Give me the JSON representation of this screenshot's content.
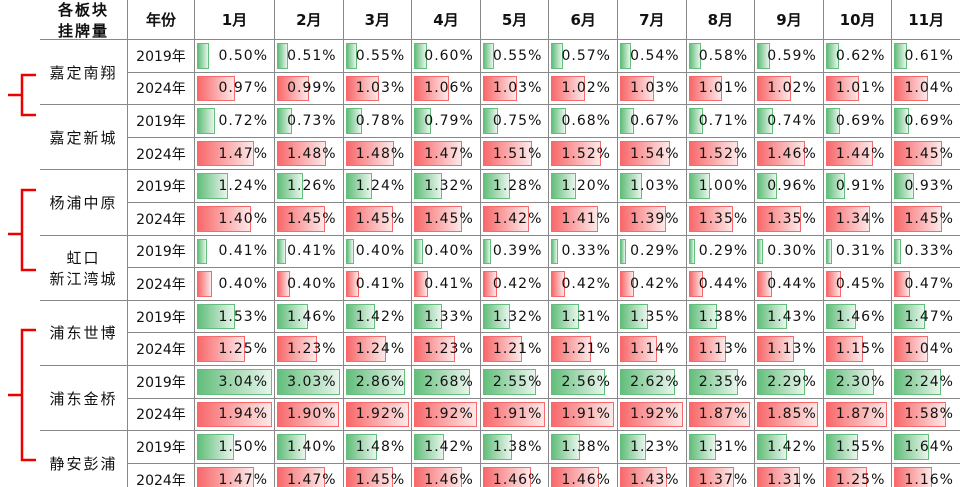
{
  "header": {
    "block": [
      "各板块",
      "挂牌量"
    ],
    "year": "年份",
    "months": [
      "1月",
      "2月",
      "3月",
      "4月",
      "5月",
      "6月",
      "7月",
      "8月",
      "9月",
      "10月",
      "11月"
    ]
  },
  "rows": [
    {
      "block": [
        "嘉定南翔"
      ],
      "years": [
        {
          "year": "2019年",
          "values": [
            0.5,
            0.51,
            0.55,
            0.6,
            0.55,
            0.57,
            0.54,
            0.58,
            0.59,
            0.62,
            0.61
          ],
          "labels": [
            "0.50%",
            "0.51%",
            "0.55%",
            "0.60%",
            "0.55%",
            "0.57%",
            "0.54%",
            "0.58%",
            "0.59%",
            "0.62%",
            "0.61%"
          ]
        },
        {
          "year": "2024年",
          "values": [
            0.97,
            0.99,
            1.03,
            1.06,
            1.03,
            1.02,
            1.03,
            1.01,
            1.02,
            1.01,
            1.04
          ],
          "labels": [
            "0.97%",
            "0.99%",
            "1.03%",
            "1.06%",
            "1.03%",
            "1.02%",
            "1.03%",
            "1.01%",
            "1.02%",
            "1.01%",
            "1.04%"
          ]
        }
      ]
    },
    {
      "block": [
        "嘉定新城"
      ],
      "years": [
        {
          "year": "2019年",
          "values": [
            0.72,
            0.73,
            0.78,
            0.79,
            0.75,
            0.68,
            0.67,
            0.71,
            0.74,
            0.69,
            0.69
          ],
          "labels": [
            "0.72%",
            "0.73%",
            "0.78%",
            "0.79%",
            "0.75%",
            "0.68%",
            "0.67%",
            "0.71%",
            "0.74%",
            "0.69%",
            "0.69%"
          ]
        },
        {
          "year": "2024年",
          "values": [
            1.47,
            1.48,
            1.48,
            1.47,
            1.51,
            1.52,
            1.54,
            1.52,
            1.46,
            1.44,
            1.45
          ],
          "labels": [
            "1.47%",
            "1.48%",
            "1.48%",
            "1.47%",
            "1.51%",
            "1.52%",
            "1.54%",
            "1.52%",
            "1.46%",
            "1.44%",
            "1.45%"
          ]
        }
      ]
    },
    {
      "block": [
        "杨浦中原"
      ],
      "years": [
        {
          "year": "2019年",
          "values": [
            1.24,
            1.26,
            1.24,
            1.32,
            1.28,
            1.2,
            1.03,
            1.0,
            0.96,
            0.91,
            0.93
          ],
          "labels": [
            "1.24%",
            "1.26%",
            "1.24%",
            "1.32%",
            "1.28%",
            "1.20%",
            "1.03%",
            "1.00%",
            "0.96%",
            "0.91%",
            "0.93%"
          ]
        },
        {
          "year": "2024年",
          "values": [
            1.4,
            1.45,
            1.45,
            1.45,
            1.42,
            1.41,
            1.39,
            1.35,
            1.35,
            1.34,
            1.45
          ],
          "labels": [
            "1.40%",
            "1.45%",
            "1.45%",
            "1.45%",
            "1.42%",
            "1.41%",
            "1.39%",
            "1.35%",
            "1.35%",
            "1.34%",
            "1.45%"
          ]
        }
      ]
    },
    {
      "block": [
        "虹口",
        "新江湾城"
      ],
      "years": [
        {
          "year": "2019年",
          "values": [
            0.41,
            0.41,
            0.4,
            0.4,
            0.39,
            0.33,
            0.29,
            0.29,
            0.3,
            0.31,
            0.33
          ],
          "labels": [
            "0.41%",
            "0.41%",
            "0.40%",
            "0.40%",
            "0.39%",
            "0.33%",
            "0.29%",
            "0.29%",
            "0.30%",
            "0.31%",
            "0.33%"
          ]
        },
        {
          "year": "2024年",
          "values": [
            0.4,
            0.4,
            0.41,
            0.41,
            0.42,
            0.42,
            0.42,
            0.44,
            0.44,
            0.45,
            0.47
          ],
          "labels": [
            "0.40%",
            "0.40%",
            "0.41%",
            "0.41%",
            "0.42%",
            "0.42%",
            "0.42%",
            "0.44%",
            "0.44%",
            "0.45%",
            "0.47%"
          ]
        }
      ]
    },
    {
      "block": [
        "浦东世博"
      ],
      "years": [
        {
          "year": "2019年",
          "values": [
            1.53,
            1.46,
            1.42,
            1.33,
            1.32,
            1.31,
            1.35,
            1.38,
            1.43,
            1.46,
            1.47
          ],
          "labels": [
            "1.53%",
            "1.46%",
            "1.42%",
            "1.33%",
            "1.32%",
            "1.31%",
            "1.35%",
            "1.38%",
            "1.43%",
            "1.46%",
            "1.47%"
          ]
        },
        {
          "year": "2024年",
          "values": [
            1.25,
            1.23,
            1.24,
            1.23,
            1.21,
            1.21,
            1.14,
            1.13,
            1.13,
            1.15,
            1.04
          ],
          "labels": [
            "1.25%",
            "1.23%",
            "1.24%",
            "1.23%",
            "1.21%",
            "1.21%",
            "1.14%",
            "1.13%",
            "1.13%",
            "1.15%",
            "1.04%"
          ]
        }
      ]
    },
    {
      "block": [
        "浦东金桥"
      ],
      "years": [
        {
          "year": "2019年",
          "values": [
            3.04,
            3.03,
            2.86,
            2.68,
            2.55,
            2.56,
            2.62,
            2.35,
            2.29,
            2.3,
            2.24
          ],
          "labels": [
            "3.04%",
            "3.03%",
            "2.86%",
            "2.68%",
            "2.55%",
            "2.56%",
            "2.62%",
            "2.35%",
            "2.29%",
            "2.30%",
            "2.24%"
          ]
        },
        {
          "year": "2024年",
          "values": [
            1.94,
            1.9,
            1.92,
            1.92,
            1.91,
            1.91,
            1.92,
            1.87,
            1.85,
            1.87,
            1.58
          ],
          "labels": [
            "1.94%",
            "1.90%",
            "1.92%",
            "1.92%",
            "1.91%",
            "1.91%",
            "1.92%",
            "1.87%",
            "1.85%",
            "1.87%",
            "1.58%"
          ]
        }
      ]
    },
    {
      "block": [
        "静安彭浦"
      ],
      "years": [
        {
          "year": "2019年",
          "values": [
            1.5,
            1.4,
            1.48,
            1.42,
            1.38,
            1.38,
            1.23,
            1.31,
            1.42,
            1.55,
            1.64
          ],
          "labels": [
            "1.50%",
            "1.40%",
            "1.48%",
            "1.42%",
            "1.38%",
            "1.38%",
            "1.23%",
            "1.31%",
            "1.42%",
            "1.55%",
            "1.64%"
          ]
        },
        {
          "year": "2024年",
          "values": [
            1.47,
            1.47,
            1.45,
            1.46,
            1.46,
            1.46,
            1.43,
            1.37,
            1.31,
            1.25,
            1.16
          ],
          "labels": [
            "1.47%",
            "1.47%",
            "1.45%",
            "1.46%",
            "1.46%",
            "1.46%",
            "1.43%",
            "1.37%",
            "1.31%",
            "1.25%",
            "1.16%"
          ]
        }
      ]
    }
  ]
}
